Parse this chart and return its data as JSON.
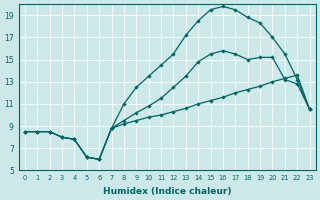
{
  "xlabel": "Humidex (Indice chaleur)",
  "ylabel": "",
  "background_color": "#cce8e8",
  "line_color": "#006666",
  "xlim": [
    -0.5,
    23.5
  ],
  "ylim": [
    5,
    20
  ],
  "yticks": [
    5,
    7,
    9,
    11,
    13,
    15,
    17,
    19
  ],
  "xticks": [
    0,
    1,
    2,
    3,
    4,
    5,
    6,
    7,
    8,
    9,
    10,
    11,
    12,
    13,
    14,
    15,
    16,
    17,
    18,
    19,
    20,
    21,
    22,
    23
  ],
  "line1_x": [
    0,
    1,
    2,
    3,
    4,
    5,
    6,
    7,
    8,
    9,
    10,
    11,
    12,
    13,
    14,
    15,
    16,
    17,
    18,
    19,
    20,
    21,
    22,
    23
  ],
  "line1_y": [
    8.5,
    8.5,
    8.5,
    8.0,
    7.8,
    6.2,
    6.0,
    8.8,
    9.2,
    9.5,
    9.8,
    10.0,
    10.3,
    10.6,
    11.0,
    11.3,
    11.6,
    12.0,
    12.3,
    12.6,
    13.0,
    13.3,
    13.6,
    10.5
  ],
  "line2_x": [
    0,
    1,
    2,
    3,
    4,
    5,
    6,
    7,
    8,
    9,
    10,
    11,
    12,
    13,
    14,
    15,
    16,
    17,
    18,
    19,
    20,
    21,
    22,
    23
  ],
  "line2_y": [
    8.5,
    8.5,
    8.5,
    8.0,
    7.8,
    6.2,
    6.0,
    8.8,
    11.0,
    12.5,
    13.5,
    14.5,
    15.5,
    17.2,
    18.5,
    19.5,
    19.8,
    19.5,
    18.8,
    18.3,
    17.0,
    15.5,
    13.2,
    10.5
  ],
  "line3_x": [
    0,
    1,
    2,
    3,
    4,
    5,
    6,
    7,
    8,
    9,
    10,
    11,
    12,
    13,
    14,
    15,
    16,
    17,
    18,
    19,
    20,
    21,
    22,
    23
  ],
  "line3_y": [
    8.5,
    8.5,
    8.5,
    8.0,
    7.8,
    6.2,
    6.0,
    8.8,
    9.5,
    10.2,
    10.8,
    11.5,
    12.5,
    13.5,
    14.8,
    15.5,
    15.8,
    15.5,
    15.0,
    15.2,
    15.2,
    13.2,
    12.8,
    10.5
  ]
}
